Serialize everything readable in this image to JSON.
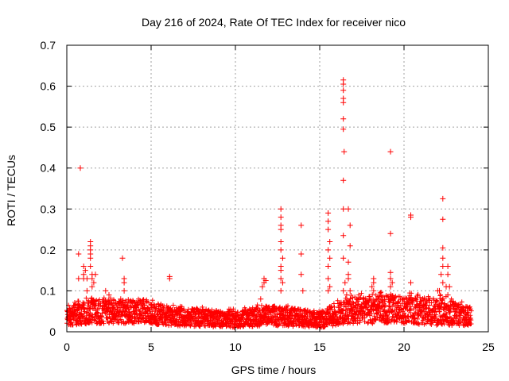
{
  "chart_data": {
    "type": "scatter",
    "title": "Day 216 of 2024, Rate Of TEC Index for receiver nico",
    "xlabel": "GPS time / hours",
    "ylabel": "ROTI / TECUs",
    "xlim": [
      0,
      25
    ],
    "ylim": [
      0,
      0.7
    ],
    "xticks": [
      "0",
      "5",
      "10",
      "15",
      "20",
      "25"
    ],
    "yticks": [
      "0",
      "0.1",
      "0.2",
      "0.3",
      "0.4",
      "0.5",
      "0.6",
      "0.7"
    ],
    "grid": true,
    "marker": "plus",
    "color": "#ff0000",
    "baseline_band": {
      "x_range": [
        0,
        24
      ],
      "description": "dense cloud of points between about 0.01 and 0.08 TECU",
      "profile": [
        {
          "x": 0.0,
          "y_low": 0.015,
          "y_high": 0.06
        },
        {
          "x": 1.5,
          "y_low": 0.02,
          "y_high": 0.08
        },
        {
          "x": 4.5,
          "y_low": 0.02,
          "y_high": 0.08
        },
        {
          "x": 6.0,
          "y_low": 0.015,
          "y_high": 0.06
        },
        {
          "x": 10.0,
          "y_low": 0.01,
          "y_high": 0.05
        },
        {
          "x": 12.0,
          "y_low": 0.015,
          "y_high": 0.065
        },
        {
          "x": 15.0,
          "y_low": 0.01,
          "y_high": 0.05
        },
        {
          "x": 17.0,
          "y_low": 0.02,
          "y_high": 0.085
        },
        {
          "x": 19.5,
          "y_low": 0.02,
          "y_high": 0.09
        },
        {
          "x": 22.5,
          "y_low": 0.015,
          "y_high": 0.08
        },
        {
          "x": 24.0,
          "y_low": 0.015,
          "y_high": 0.06
        }
      ]
    },
    "points": [
      {
        "x": 0.7,
        "y": 0.19
      },
      {
        "x": 0.7,
        "y": 0.13
      },
      {
        "x": 0.8,
        "y": 0.4
      },
      {
        "x": 1.0,
        "y": 0.16
      },
      {
        "x": 1.0,
        "y": 0.14
      },
      {
        "x": 1.0,
        "y": 0.13
      },
      {
        "x": 1.1,
        "y": 0.15
      },
      {
        "x": 1.2,
        "y": 0.1
      },
      {
        "x": 1.2,
        "y": 0.13
      },
      {
        "x": 1.4,
        "y": 0.22
      },
      {
        "x": 1.4,
        "y": 0.21
      },
      {
        "x": 1.4,
        "y": 0.2
      },
      {
        "x": 1.4,
        "y": 0.19
      },
      {
        "x": 1.4,
        "y": 0.18
      },
      {
        "x": 1.4,
        "y": 0.16
      },
      {
        "x": 1.5,
        "y": 0.14
      },
      {
        "x": 1.5,
        "y": 0.13
      },
      {
        "x": 1.6,
        "y": 0.12
      },
      {
        "x": 1.7,
        "y": 0.14
      },
      {
        "x": 1.5,
        "y": 0.11
      },
      {
        "x": 2.3,
        "y": 0.1
      },
      {
        "x": 2.5,
        "y": 0.09
      },
      {
        "x": 3.2,
        "y": 0.08
      },
      {
        "x": 3.3,
        "y": 0.18
      },
      {
        "x": 3.4,
        "y": 0.13
      },
      {
        "x": 3.4,
        "y": 0.12
      },
      {
        "x": 3.4,
        "y": 0.1
      },
      {
        "x": 6.1,
        "y": 0.135
      },
      {
        "x": 6.1,
        "y": 0.13
      },
      {
        "x": 11.7,
        "y": 0.13
      },
      {
        "x": 11.7,
        "y": 0.12
      },
      {
        "x": 11.8,
        "y": 0.125
      },
      {
        "x": 11.6,
        "y": 0.11
      },
      {
        "x": 11.5,
        "y": 0.08
      },
      {
        "x": 12.7,
        "y": 0.3
      },
      {
        "x": 12.7,
        "y": 0.28
      },
      {
        "x": 12.7,
        "y": 0.26
      },
      {
        "x": 12.7,
        "y": 0.25
      },
      {
        "x": 12.7,
        "y": 0.22
      },
      {
        "x": 12.7,
        "y": 0.2
      },
      {
        "x": 12.8,
        "y": 0.18
      },
      {
        "x": 12.7,
        "y": 0.16
      },
      {
        "x": 12.7,
        "y": 0.15
      },
      {
        "x": 12.7,
        "y": 0.13
      },
      {
        "x": 12.8,
        "y": 0.12
      },
      {
        "x": 12.7,
        "y": 0.1
      },
      {
        "x": 13.9,
        "y": 0.26
      },
      {
        "x": 13.9,
        "y": 0.19
      },
      {
        "x": 13.9,
        "y": 0.14
      },
      {
        "x": 14.0,
        "y": 0.1
      },
      {
        "x": 15.5,
        "y": 0.29
      },
      {
        "x": 15.5,
        "y": 0.27
      },
      {
        "x": 15.5,
        "y": 0.25
      },
      {
        "x": 15.6,
        "y": 0.22
      },
      {
        "x": 15.5,
        "y": 0.2
      },
      {
        "x": 15.6,
        "y": 0.18
      },
      {
        "x": 15.5,
        "y": 0.16
      },
      {
        "x": 15.5,
        "y": 0.13
      },
      {
        "x": 15.6,
        "y": 0.11
      },
      {
        "x": 15.5,
        "y": 0.1
      },
      {
        "x": 16.4,
        "y": 0.615
      },
      {
        "x": 16.4,
        "y": 0.605
      },
      {
        "x": 16.4,
        "y": 0.59
      },
      {
        "x": 16.4,
        "y": 0.57
      },
      {
        "x": 16.4,
        "y": 0.56
      },
      {
        "x": 16.4,
        "y": 0.52
      },
      {
        "x": 16.4,
        "y": 0.495
      },
      {
        "x": 16.45,
        "y": 0.44
      },
      {
        "x": 16.4,
        "y": 0.37
      },
      {
        "x": 16.4,
        "y": 0.3
      },
      {
        "x": 16.4,
        "y": 0.235
      },
      {
        "x": 16.4,
        "y": 0.18
      },
      {
        "x": 16.5,
        "y": 0.12
      },
      {
        "x": 16.4,
        "y": 0.1
      },
      {
        "x": 16.7,
        "y": 0.3
      },
      {
        "x": 16.8,
        "y": 0.26
      },
      {
        "x": 16.8,
        "y": 0.21
      },
      {
        "x": 16.7,
        "y": 0.17
      },
      {
        "x": 16.7,
        "y": 0.14
      },
      {
        "x": 16.7,
        "y": 0.13
      },
      {
        "x": 16.8,
        "y": 0.1
      },
      {
        "x": 16.6,
        "y": 0.09
      },
      {
        "x": 18.2,
        "y": 0.13
      },
      {
        "x": 18.2,
        "y": 0.12
      },
      {
        "x": 18.1,
        "y": 0.11
      },
      {
        "x": 18.2,
        "y": 0.1
      },
      {
        "x": 19.2,
        "y": 0.44
      },
      {
        "x": 19.2,
        "y": 0.24
      },
      {
        "x": 19.2,
        "y": 0.145
      },
      {
        "x": 19.2,
        "y": 0.13
      },
      {
        "x": 19.3,
        "y": 0.12
      },
      {
        "x": 19.2,
        "y": 0.11
      },
      {
        "x": 20.4,
        "y": 0.285
      },
      {
        "x": 20.4,
        "y": 0.28
      },
      {
        "x": 20.4,
        "y": 0.12
      },
      {
        "x": 22.3,
        "y": 0.325
      },
      {
        "x": 22.3,
        "y": 0.275
      },
      {
        "x": 22.3,
        "y": 0.205
      },
      {
        "x": 22.3,
        "y": 0.18
      },
      {
        "x": 22.3,
        "y": 0.16
      },
      {
        "x": 22.2,
        "y": 0.14
      },
      {
        "x": 22.3,
        "y": 0.12
      },
      {
        "x": 22.1,
        "y": 0.1
      },
      {
        "x": 22.0,
        "y": 0.1
      },
      {
        "x": 22.6,
        "y": 0.16
      },
      {
        "x": 22.6,
        "y": 0.14
      },
      {
        "x": 22.5,
        "y": 0.11
      },
      {
        "x": 22.7,
        "y": 0.11
      },
      {
        "x": 22.6,
        "y": 0.09
      }
    ]
  }
}
